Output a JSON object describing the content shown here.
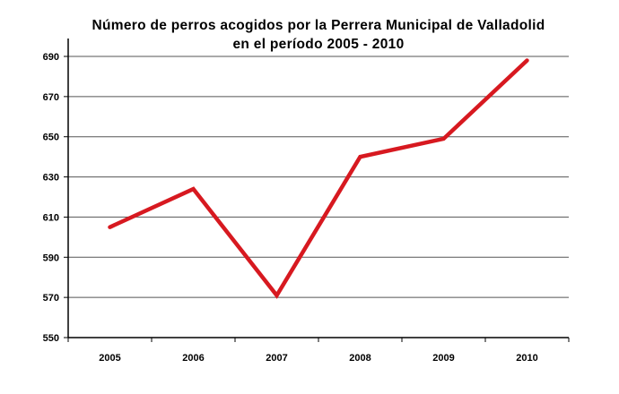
{
  "title_line1": "Número de perros acogidos por la Perrera Municipal de Valladolid",
  "title_line2": "en el período 2005 - 2010",
  "colors": {
    "line": "#d71920",
    "grid": "#555555",
    "axis": "#000000"
  },
  "chart_data": {
    "type": "line",
    "title": "Número de perros acogidos por la Perrera Municipal de Valladolid en el período 2005 - 2010",
    "xlabel": "",
    "ylabel": "",
    "categories": [
      "2005",
      "2006",
      "2007",
      "2008",
      "2009",
      "2010"
    ],
    "series": [
      {
        "name": "Perros acogidos",
        "values": [
          605,
          624,
          571,
          640,
          649,
          688
        ]
      }
    ],
    "ylim": [
      550,
      690
    ],
    "yticks": [
      550,
      570,
      590,
      610,
      630,
      650,
      670,
      690
    ],
    "grid": true,
    "legend": "none"
  }
}
